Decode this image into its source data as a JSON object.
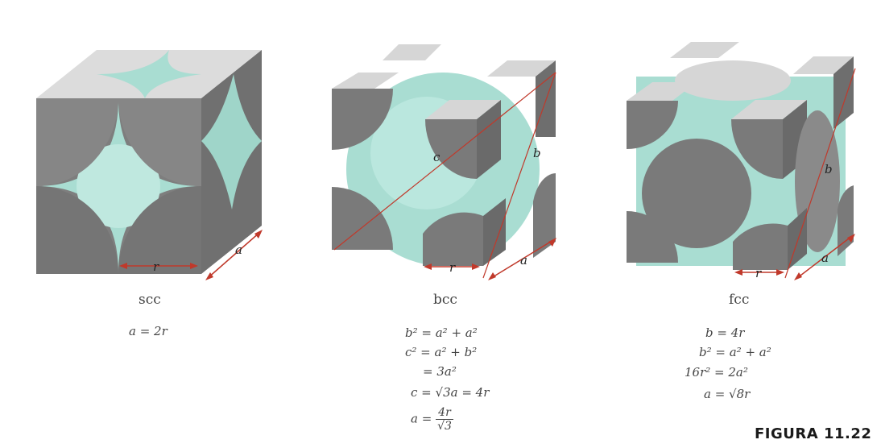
{
  "figure_label": "FIGURA 11.22",
  "panels": [
    {
      "name": "scc",
      "caption": "scc",
      "equations": [
        "a = 2r"
      ],
      "marks": {
        "r": "r",
        "a": "a"
      }
    },
    {
      "name": "bcc",
      "caption": "bcc",
      "equations": [
        "b² = a² + a²",
        "c² = a² + b²",
        "= 3a²",
        "c = √3a = 4r"
      ],
      "fraction": {
        "lhs": "a =",
        "num": "4r",
        "den": "√3"
      },
      "marks": {
        "r": "r",
        "a": "a",
        "b": "b",
        "c": "c"
      }
    },
    {
      "name": "fcc",
      "caption": "fcc",
      "equations": [
        "b = 4r",
        "b² = a² + a²",
        "16r² = 2a²",
        "a = √8r"
      ],
      "marks": {
        "r": "r",
        "a": "a",
        "b": "b"
      }
    }
  ],
  "colors": {
    "cube_face_dark": "#7d7d7d",
    "cube_face_light": "#d6d6d6",
    "cube_face_side": "#6c6c6c",
    "sphere_teal": "#a9ddd2",
    "diagonal_red": "#c0392b"
  }
}
